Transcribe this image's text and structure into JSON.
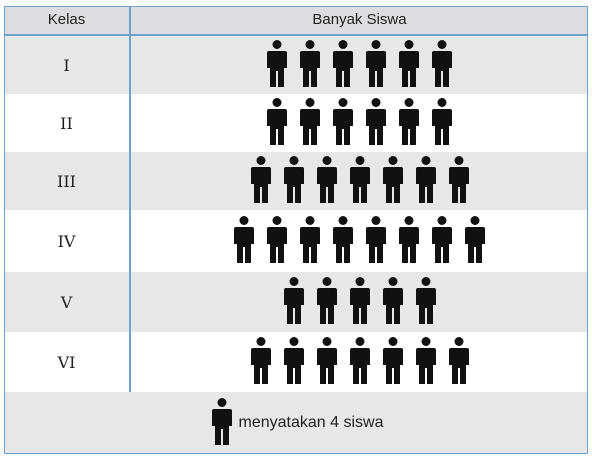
{
  "header": {
    "kelas": "Kelas",
    "banyak": "Banyak Siswa"
  },
  "legend": {
    "icon": "person-icon",
    "text": "menyatakan 4 siswa"
  },
  "chart_data": {
    "type": "pictogram",
    "categories": [
      "I",
      "II",
      "III",
      "IV",
      "V",
      "VI"
    ],
    "values": [
      6,
      6,
      7,
      8,
      5,
      7
    ],
    "value_unit": "icons",
    "icon_value": 4,
    "xlabel": "Kelas",
    "ylabel": "Banyak Siswa"
  },
  "colors": {
    "border": "#6ea2c9",
    "shade": "#e6e7e9",
    "header": "#dcdde0",
    "icon": "#111111"
  }
}
